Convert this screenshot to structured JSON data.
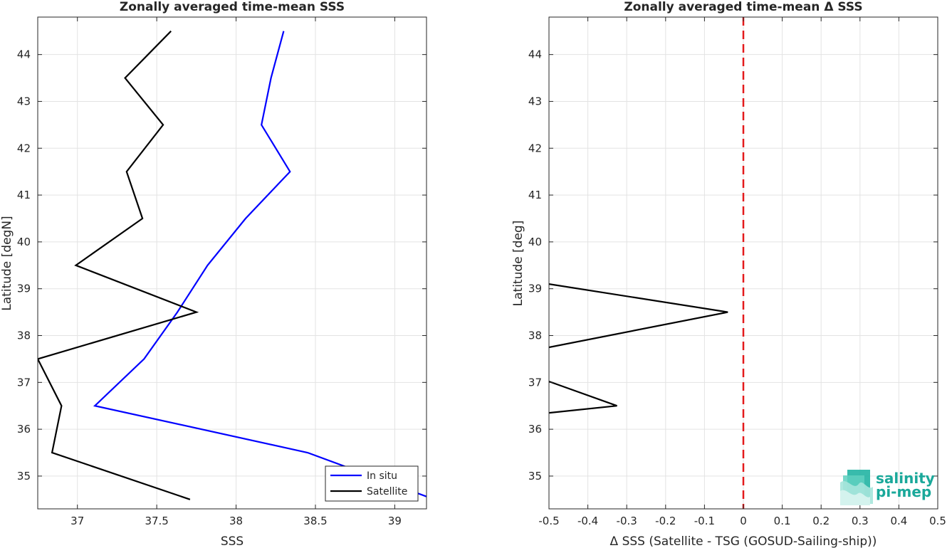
{
  "chart_data": [
    {
      "type": "line",
      "title": "Zonally averaged time-mean SSS",
      "xlabel": "SSS",
      "ylabel": "Latitude [degN]",
      "xlim": [
        36.75,
        39.2
      ],
      "ylim": [
        34.3,
        44.8
      ],
      "xticks": [
        37,
        37.5,
        38,
        38.5,
        39
      ],
      "xtick_labels": [
        "37",
        "37.5",
        "38",
        "38.5",
        "39"
      ],
      "yticks": [
        35,
        36,
        37,
        38,
        39,
        40,
        41,
        42,
        43,
        44
      ],
      "grid": true,
      "legend_position": "bottom-right",
      "series": [
        {
          "name": "In situ",
          "color": "#0000ff",
          "points": [
            [
              39.25,
              34.5
            ],
            [
              38.45,
              35.5
            ],
            [
              37.11,
              36.5
            ],
            [
              37.42,
              37.5
            ],
            [
              37.63,
              38.5
            ],
            [
              37.82,
              39.5
            ],
            [
              38.06,
              40.5
            ],
            [
              38.34,
              41.5
            ],
            [
              38.16,
              42.5
            ],
            [
              38.22,
              43.5
            ],
            [
              38.3,
              44.5
            ]
          ]
        },
        {
          "name": "Satellite",
          "color": "#000000",
          "points": [
            [
              37.71,
              34.5
            ],
            [
              36.84,
              35.5
            ],
            [
              36.9,
              36.5
            ],
            [
              36.75,
              37.5
            ],
            [
              37.75,
              38.5
            ],
            [
              36.99,
              39.5
            ],
            [
              37.41,
              40.5
            ],
            [
              37.31,
              41.5
            ],
            [
              37.54,
              42.5
            ],
            [
              37.3,
              43.5
            ],
            [
              37.59,
              44.5
            ]
          ]
        }
      ]
    },
    {
      "type": "line",
      "title": "Zonally averaged time-mean Δ SSS",
      "xlabel": "Δ SSS (Satellite - TSG (GOSUD-Sailing-ship))",
      "ylabel": "Latitude [deg]",
      "xlim": [
        -0.5,
        0.5
      ],
      "ylim": [
        34.3,
        44.8
      ],
      "xticks": [
        -0.5,
        -0.4,
        -0.3,
        -0.2,
        -0.1,
        0,
        0.1,
        0.2,
        0.3,
        0.4,
        0.5
      ],
      "xtick_labels": [
        "-0.5",
        "-0.4",
        "-0.3",
        "-0.2",
        "-0.1",
        "0",
        "0.1",
        "0.2",
        "0.3",
        "0.4",
        "0.5"
      ],
      "yticks": [
        35,
        36,
        37,
        38,
        39,
        40,
        41,
        42,
        43,
        44
      ],
      "grid": true,
      "reference_line": {
        "x": 0,
        "color": "#e31a1c",
        "style": "dashed"
      },
      "series": [
        {
          "color": "#000000",
          "segments": [
            [
              [
                -0.5,
                36.35
              ],
              [
                -0.325,
                36.5
              ],
              [
                -0.5,
                37.02
              ]
            ],
            [
              [
                -0.5,
                37.75
              ],
              [
                -0.04,
                38.5
              ],
              [
                -0.5,
                39.1
              ]
            ]
          ]
        }
      ]
    }
  ],
  "logo": {
    "line1": "salinity",
    "line2": "pi-mep",
    "color": "#1aa89a"
  }
}
